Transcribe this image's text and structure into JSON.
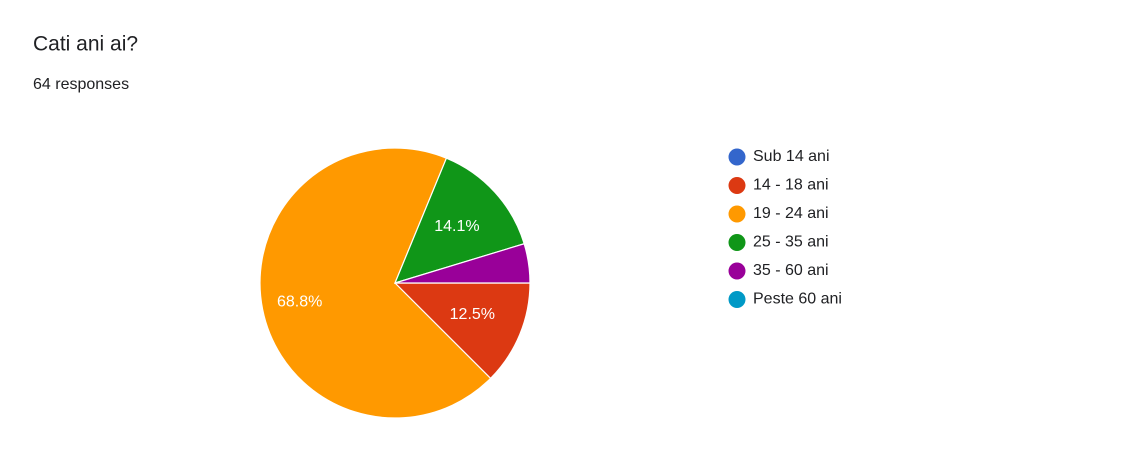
{
  "chart_data": {
    "type": "pie",
    "title": "Cati ani ai?",
    "subtitle": "64 responses",
    "categories": [
      "Sub 14 ani",
      "14 - 18 ani",
      "19 - 24 ani",
      "25 - 35 ani",
      "35 - 60 ani",
      "Peste 60 ani"
    ],
    "values": [
      0,
      12.5,
      68.8,
      14.1,
      4.7,
      0
    ],
    "value_labels": [
      null,
      "12.5%",
      "68.8%",
      "14.1%",
      null,
      null
    ],
    "colors": [
      "#3366cc",
      "#dc3912",
      "#ff9900",
      "#109618",
      "#990099",
      "#0099c6"
    ],
    "legend": "right"
  }
}
